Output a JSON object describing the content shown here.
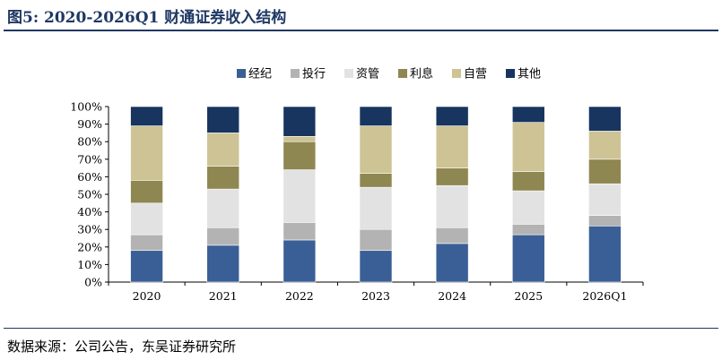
{
  "header": {
    "title": "图5:  2020-2026Q1 财通证券收入结构"
  },
  "footer": {
    "source": "数据来源：公司公告，东吴证券研究所"
  },
  "colors": {
    "经纪": "#3a5f96",
    "投行": "#b3b3b3",
    "资管": "#e2e2e2",
    "利息": "#8f8751",
    "自营": "#cdc395",
    "其他": "#17355f"
  },
  "chart_data": {
    "type": "bar",
    "stacked": true,
    "categories": [
      "2020",
      "2021",
      "2022",
      "2023",
      "2024",
      "2025",
      "2026Q1"
    ],
    "series": [
      {
        "name": "经纪",
        "values": [
          18,
          21,
          24,
          18,
          22,
          27,
          32
        ]
      },
      {
        "name": "投行",
        "values": [
          9,
          10,
          10,
          12,
          9,
          6,
          6
        ]
      },
      {
        "name": "资管",
        "values": [
          18,
          22,
          30,
          24,
          24,
          19,
          18
        ]
      },
      {
        "name": "利息",
        "values": [
          13,
          13,
          16,
          8,
          10,
          11,
          14
        ]
      },
      {
        "name": "自营",
        "values": [
          31,
          19,
          3,
          27,
          24,
          28,
          16
        ]
      },
      {
        "name": "其他",
        "values": [
          11,
          15,
          17,
          11,
          11,
          9,
          14
        ]
      }
    ],
    "ylim": [
      0,
      100
    ],
    "yticks": [
      "0%",
      "10%",
      "20%",
      "30%",
      "40%",
      "50%",
      "60%",
      "70%",
      "80%",
      "90%",
      "100%"
    ],
    "legend_position": "top-center",
    "grid": false
  }
}
